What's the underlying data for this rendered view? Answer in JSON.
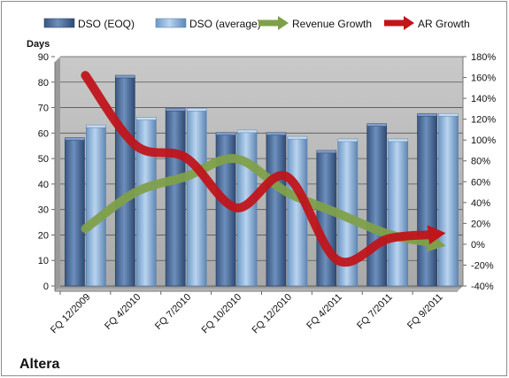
{
  "chart_data": {
    "type": "bar",
    "title": "Altera",
    "ylabel_left": "Days",
    "ylim_left": [
      0,
      90
    ],
    "yticks_left": [
      "0",
      "10",
      "20",
      "30",
      "40",
      "50",
      "60",
      "70",
      "80",
      "90"
    ],
    "ylim_right": [
      -40,
      180
    ],
    "yticks_right": [
      "-40%",
      "-20%",
      "0%",
      "20%",
      "40%",
      "60%",
      "80%",
      "100%",
      "120%",
      "140%",
      "160%",
      "180%"
    ],
    "categories": [
      "FQ 12/2009",
      "FQ 4/2010",
      "FQ 7/2010",
      "FQ 10/2010",
      "FQ 12/2010",
      "FQ 4/2011",
      "FQ 7/2011",
      "FQ 9/2011"
    ],
    "series": [
      {
        "name": "DSO (EOQ)",
        "kind": "bar",
        "axis": "left",
        "color": "#4f6f9f",
        "values": [
          57.5,
          82,
          69,
          59.5,
          59.5,
          52.5,
          63,
          67
        ]
      },
      {
        "name": "DSO (average)",
        "kind": "bar",
        "axis": "left",
        "color": "#8db4dc",
        "values": [
          62.5,
          65.5,
          69,
          60.5,
          58,
          57,
          57,
          67
        ]
      },
      {
        "name": "Revenue Growth",
        "kind": "line",
        "axis": "right",
        "color": "#7fa04a",
        "values": [
          15,
          50,
          65,
          82,
          50,
          30,
          10,
          0
        ]
      },
      {
        "name": "AR Growth",
        "kind": "line",
        "axis": "right",
        "color": "#c0151b",
        "values": [
          162,
          95,
          83,
          35,
          65,
          -15,
          5,
          10
        ]
      }
    ],
    "grid": true,
    "legend_position": "top"
  }
}
